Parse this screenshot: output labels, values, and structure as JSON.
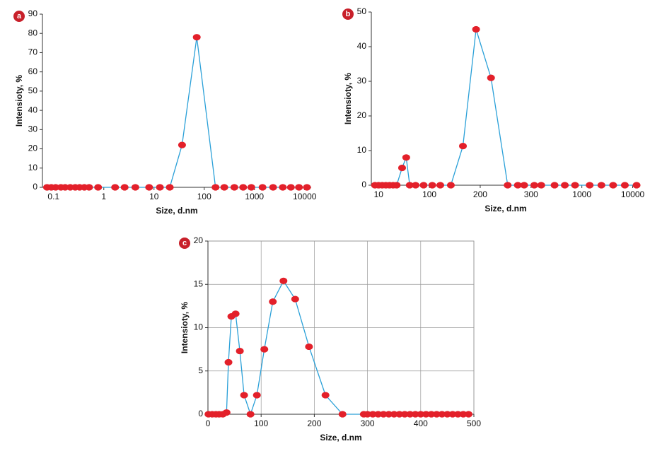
{
  "chart_data": [
    {
      "type": "line",
      "panel_label": "a",
      "x_label": "Size, d.nm",
      "y_label": "Intensioty, %",
      "xscale": "piecewise-log",
      "xlim": [
        0.06,
        13500
      ],
      "xticks": [
        0.1,
        1,
        10,
        100,
        1000,
        10000
      ],
      "ylim": [
        0,
        90
      ],
      "yticks": [
        0,
        10,
        20,
        30,
        40,
        50,
        60,
        70,
        80,
        90
      ],
      "grid": false,
      "line_color": "#2aa0d8",
      "marker_color": "#e3202a",
      "x": [
        0.074,
        0.09,
        0.11,
        0.14,
        0.17,
        0.215,
        0.27,
        0.33,
        0.41,
        0.51,
        0.77,
        1.68,
        2.6,
        4.25,
        8.0,
        13.1,
        20.6,
        36.2,
        71,
        168,
        251,
        398,
        596,
        866,
        1449,
        2350,
        3670,
        5320,
        7700,
        11100
      ],
      "values": [
        0,
        0,
        0,
        0,
        0,
        0,
        0,
        0,
        0,
        0,
        0,
        0,
        0,
        0,
        0,
        0,
        0,
        22,
        78,
        0,
        0,
        0,
        0,
        0,
        0,
        0,
        0,
        0,
        0,
        0
      ]
    },
    {
      "type": "line",
      "panel_label": "b",
      "x_label": "Size, d.nm",
      "y_label": "Intensioty, %",
      "xscale": "piecewise-log",
      "xlim": [
        7.2,
        14000
      ],
      "xticks": [
        10,
        100,
        200,
        300,
        1000,
        10000
      ],
      "ylim": [
        0,
        50
      ],
      "yticks": [
        0,
        10,
        20,
        30,
        40,
        50
      ],
      "grid": false,
      "line_color": "#2aa0d8",
      "marker_color": "#e3202a",
      "x": [
        8.5,
        10,
        11.8,
        13.9,
        16.4,
        19.3,
        22.7,
        29,
        35,
        41,
        53.5,
        76.9,
        104,
        116,
        134,
        158,
        189,
        218,
        249,
        270,
        284,
        324,
        382,
        524,
        668,
        851,
        1425,
        2424,
        4125,
        7019,
        11940
      ],
      "values": [
        0,
        0,
        0,
        0,
        0,
        0,
        0,
        5,
        8,
        0,
        0,
        0,
        0,
        0,
        0,
        11.3,
        45,
        31,
        0,
        0,
        0,
        0,
        0,
        0,
        0,
        0,
        0,
        0,
        0,
        0,
        0
      ]
    },
    {
      "type": "line",
      "panel_label": "c",
      "x_label": "Size, d.nm",
      "y_label": "Intensioty, %",
      "xscale": "linear",
      "xlim": [
        0,
        500
      ],
      "xticks": [
        0,
        100,
        200,
        300,
        400,
        500
      ],
      "ylim": [
        0,
        20
      ],
      "yticks": [
        0,
        5,
        10,
        15,
        20
      ],
      "grid": true,
      "line_color": "#2aa0d8",
      "marker_color": "#e3202a",
      "x": [
        1,
        8,
        15,
        21,
        28,
        35,
        38.6,
        44,
        52,
        60,
        68,
        80,
        92,
        106,
        122,
        142,
        164,
        190,
        221,
        253,
        293,
        300,
        310,
        320,
        330,
        340,
        350,
        360,
        370,
        380,
        390,
        400,
        410,
        420,
        430,
        440,
        450,
        460,
        470,
        480,
        490
      ],
      "values": [
        0,
        0,
        0,
        0,
        0,
        0.2,
        6,
        11.3,
        11.6,
        7.3,
        2.2,
        0,
        2.2,
        7.5,
        13,
        15.4,
        13.3,
        7.8,
        2.2,
        0,
        0,
        0,
        0,
        0,
        0,
        0,
        0,
        0,
        0,
        0,
        0,
        0,
        0,
        0,
        0,
        0,
        0,
        0,
        0,
        0,
        0
      ]
    }
  ]
}
